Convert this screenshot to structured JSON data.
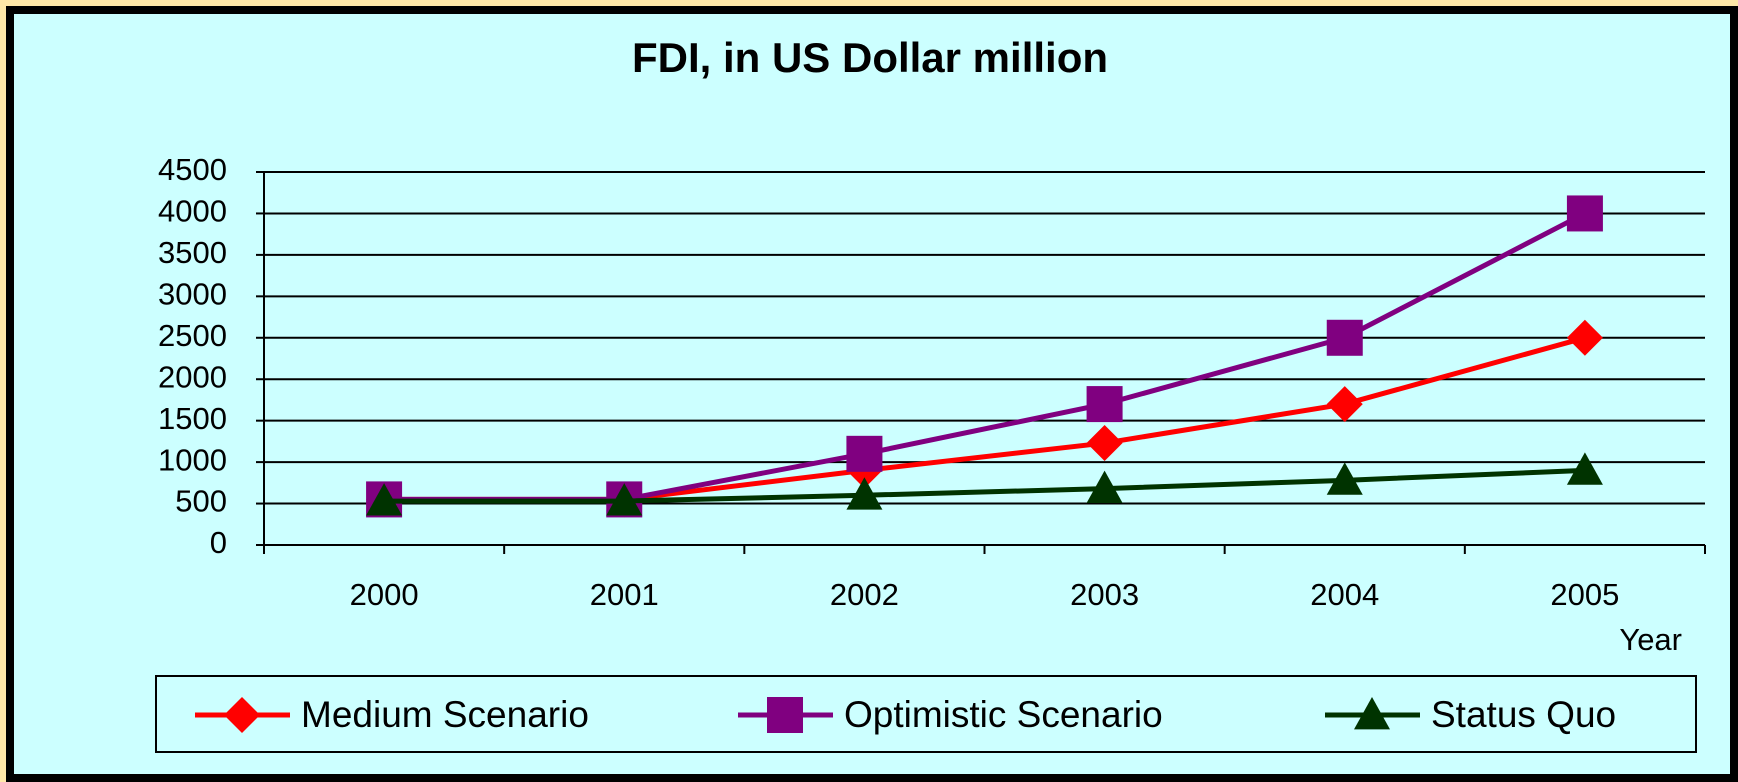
{
  "chart_data": {
    "type": "line",
    "title": "FDI, in US Dollar million",
    "x_label": "Year",
    "categories": [
      "2000",
      "2001",
      "2002",
      "2003",
      "2004",
      "2005"
    ],
    "series": [
      {
        "name": "Medium Scenario",
        "color": "#ff0000",
        "marker": "diamond",
        "values": [
          550,
          550,
          900,
          1230,
          1700,
          2500
        ]
      },
      {
        "name": "Optimistic Scenario",
        "color": "#800080",
        "marker": "square",
        "values": [
          550,
          550,
          1100,
          1700,
          2500,
          4000
        ]
      },
      {
        "name": "Status Quo",
        "color": "#003300",
        "marker": "triangle",
        "values": [
          530,
          530,
          600,
          680,
          780,
          900
        ]
      }
    ],
    "ylim": [
      0,
      4500
    ],
    "yticks": [
      0,
      500,
      1000,
      1500,
      2000,
      2500,
      3000,
      3500,
      4000,
      4500
    ],
    "grid": true,
    "legend": "bottom"
  }
}
